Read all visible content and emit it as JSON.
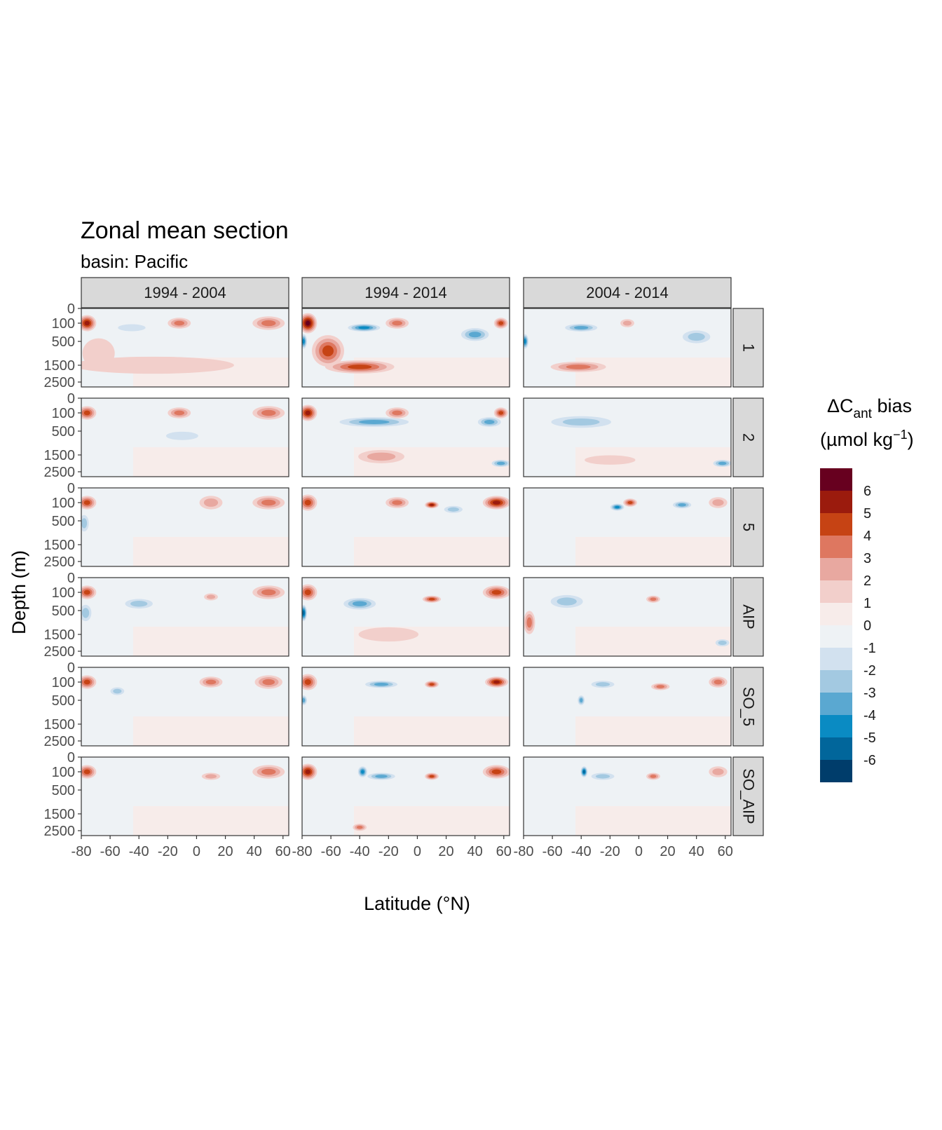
{
  "chart_data": {
    "type": "heatmap",
    "title": "Zonal mean section",
    "subtitle": "basin: Pacific",
    "xlabel": "Latitude (°N)",
    "ylabel": "Depth (m)",
    "x_ticks": [
      "-80",
      "-60",
      "-40",
      "-20",
      "0",
      "20",
      "40",
      "60"
    ],
    "y_ticks": [
      "0",
      "100",
      "500",
      "1500",
      "2500"
    ],
    "columns": [
      "1994 - 2004",
      "1994 - 2014",
      "2004 - 2014"
    ],
    "rows": [
      "1",
      "2",
      "5",
      "AIP",
      "SO_5",
      "SO_AIP"
    ],
    "legend": {
      "title_main": "ΔC",
      "title_sub": "ant",
      "title_rest": " bias",
      "units_main": "(µmol kg",
      "units_sup": "−1",
      "units_end": ")",
      "levels": [
        "6",
        "5",
        "4",
        "3",
        "2",
        "1",
        "0",
        "-1",
        "-2",
        "-3",
        "-4",
        "-5",
        "-6"
      ],
      "colors": [
        "#67001f",
        "#9b1b0d",
        "#c64314",
        "#de7760",
        "#e8a8a0",
        "#f2cfcb",
        "#f7ecea",
        "#eef2f5",
        "#d2e1ef",
        "#a3c9e1",
        "#5aa8d1",
        "#0a8bc3",
        "#01669b",
        "#003d6b"
      ]
    },
    "panels": [
      {
        "row": "1",
        "col": "1994 - 2004",
        "features": [
          {
            "lat": -76,
            "depth": 100,
            "lat_span": 8,
            "depth_span": 120,
            "bias": 5
          },
          {
            "lat": -68,
            "depth": 1000,
            "lat_span": 14,
            "depth_span": 900,
            "bias": 1.5
          },
          {
            "lat": -30,
            "depth": 1500,
            "lat_span": 70,
            "depth_span": 600,
            "bias": 1.2
          },
          {
            "lat": -45,
            "depth": 200,
            "lat_span": 12,
            "depth_span": 100,
            "bias": -1.5
          },
          {
            "lat": -12,
            "depth": 100,
            "lat_span": 10,
            "depth_span": 80,
            "bias": 3
          },
          {
            "lat": 50,
            "depth": 100,
            "lat_span": 14,
            "depth_span": 100,
            "bias": 3
          }
        ]
      },
      {
        "row": "1",
        "col": "1994 - 2014",
        "features": [
          {
            "lat": -76,
            "depth": 100,
            "lat_span": 8,
            "depth_span": 150,
            "bias": 6
          },
          {
            "lat": -62,
            "depth": 900,
            "lat_span": 14,
            "depth_span": 900,
            "bias": 4
          },
          {
            "lat": -40,
            "depth": 1600,
            "lat_span": 30,
            "depth_span": 500,
            "bias": 4.5
          },
          {
            "lat": -79,
            "depth": 500,
            "lat_span": 3,
            "depth_span": 300,
            "bias": -4
          },
          {
            "lat": -37,
            "depth": 200,
            "lat_span": 14,
            "depth_span": 120,
            "bias": -4.5
          },
          {
            "lat": -14,
            "depth": 100,
            "lat_span": 10,
            "depth_span": 80,
            "bias": 3
          },
          {
            "lat": 40,
            "depth": 350,
            "lat_span": 12,
            "depth_span": 200,
            "bias": -3
          },
          {
            "lat": 58,
            "depth": 100,
            "lat_span": 6,
            "depth_span": 80,
            "bias": 4
          }
        ]
      },
      {
        "row": "1",
        "col": "2004 - 2014",
        "features": [
          {
            "lat": -79,
            "depth": 500,
            "lat_span": 3,
            "depth_span": 300,
            "bias": -4
          },
          {
            "lat": -40,
            "depth": 200,
            "lat_span": 14,
            "depth_span": 120,
            "bias": -3.5
          },
          {
            "lat": -42,
            "depth": 1600,
            "lat_span": 24,
            "depth_span": 400,
            "bias": 3.5
          },
          {
            "lat": -8,
            "depth": 100,
            "lat_span": 6,
            "depth_span": 60,
            "bias": 2
          },
          {
            "lat": 40,
            "depth": 400,
            "lat_span": 12,
            "depth_span": 200,
            "bias": -2.5
          }
        ]
      },
      {
        "row": "2",
        "col": "1994 - 2004",
        "features": [
          {
            "lat": -76,
            "depth": 100,
            "lat_span": 8,
            "depth_span": 100,
            "bias": 4.5
          },
          {
            "lat": -12,
            "depth": 100,
            "lat_span": 10,
            "depth_span": 80,
            "bias": 3
          },
          {
            "lat": -10,
            "depth": 700,
            "lat_span": 14,
            "depth_span": 250,
            "bias": -1.8
          },
          {
            "lat": 50,
            "depth": 100,
            "lat_span": 14,
            "depth_span": 100,
            "bias": 3.5
          }
        ]
      },
      {
        "row": "2",
        "col": "1994 - 2014",
        "features": [
          {
            "lat": -76,
            "depth": 100,
            "lat_span": 8,
            "depth_span": 120,
            "bias": 5
          },
          {
            "lat": -30,
            "depth": 300,
            "lat_span": 30,
            "depth_span": 150,
            "bias": -3
          },
          {
            "lat": -25,
            "depth": 1600,
            "lat_span": 20,
            "depth_span": 500,
            "bias": 2.5
          },
          {
            "lat": -14,
            "depth": 100,
            "lat_span": 10,
            "depth_span": 80,
            "bias": 3
          },
          {
            "lat": 50,
            "depth": 300,
            "lat_span": 10,
            "depth_span": 150,
            "bias": -3
          },
          {
            "lat": 58,
            "depth": 100,
            "lat_span": 6,
            "depth_span": 80,
            "bias": 4
          },
          {
            "lat": 58,
            "depth": 2000,
            "lat_span": 8,
            "depth_span": 300,
            "bias": -3
          }
        ]
      },
      {
        "row": "2",
        "col": "2004 - 2014",
        "features": [
          {
            "lat": -40,
            "depth": 300,
            "lat_span": 26,
            "depth_span": 180,
            "bias": -2.5
          },
          {
            "lat": -20,
            "depth": 1800,
            "lat_span": 22,
            "depth_span": 400,
            "bias": 1.8
          },
          {
            "lat": 58,
            "depth": 2000,
            "lat_span": 8,
            "depth_span": 300,
            "bias": -3.5
          }
        ]
      },
      {
        "row": "5",
        "col": "1994 - 2004",
        "features": [
          {
            "lat": -76,
            "depth": 100,
            "lat_span": 8,
            "depth_span": 100,
            "bias": 4
          },
          {
            "lat": -78,
            "depth": 600,
            "lat_span": 4,
            "depth_span": 400,
            "bias": -2
          },
          {
            "lat": 10,
            "depth": 100,
            "lat_span": 10,
            "depth_span": 100,
            "bias": 2.5
          },
          {
            "lat": 50,
            "depth": 100,
            "lat_span": 14,
            "depth_span": 100,
            "bias": 3.5
          }
        ]
      },
      {
        "row": "5",
        "col": "1994 - 2014",
        "features": [
          {
            "lat": -76,
            "depth": 100,
            "lat_span": 8,
            "depth_span": 120,
            "bias": 4.5
          },
          {
            "lat": -14,
            "depth": 100,
            "lat_span": 10,
            "depth_span": 80,
            "bias": 3
          },
          {
            "lat": 10,
            "depth": 150,
            "lat_span": 6,
            "depth_span": 80,
            "bias": 5
          },
          {
            "lat": 55,
            "depth": 100,
            "lat_span": 12,
            "depth_span": 100,
            "bias": 5
          },
          {
            "lat": 25,
            "depth": 250,
            "lat_span": 8,
            "depth_span": 100,
            "bias": -2.5
          }
        ]
      },
      {
        "row": "5",
        "col": "2004 - 2014",
        "features": [
          {
            "lat": -15,
            "depth": 200,
            "lat_span": 6,
            "depth_span": 80,
            "bias": -4.5
          },
          {
            "lat": -6,
            "depth": 100,
            "lat_span": 6,
            "depth_span": 60,
            "bias": 4.5
          },
          {
            "lat": 30,
            "depth": 150,
            "lat_span": 8,
            "depth_span": 80,
            "bias": -3.5
          },
          {
            "lat": 55,
            "depth": 100,
            "lat_span": 8,
            "depth_span": 80,
            "bias": 2.5
          }
        ]
      },
      {
        "row": "AIP",
        "col": "1994 - 2004",
        "features": [
          {
            "lat": -76,
            "depth": 100,
            "lat_span": 8,
            "depth_span": 100,
            "bias": 4
          },
          {
            "lat": -77,
            "depth": 600,
            "lat_span": 5,
            "depth_span": 400,
            "bias": -2.5
          },
          {
            "lat": -40,
            "depth": 350,
            "lat_span": 12,
            "depth_span": 150,
            "bias": -2.5
          },
          {
            "lat": 10,
            "depth": 200,
            "lat_span": 6,
            "depth_span": 80,
            "bias": 2.5
          },
          {
            "lat": 50,
            "depth": 100,
            "lat_span": 14,
            "depth_span": 100,
            "bias": 3.5
          }
        ]
      },
      {
        "row": "AIP",
        "col": "1994 - 2014",
        "features": [
          {
            "lat": -76,
            "depth": 100,
            "lat_span": 8,
            "depth_span": 120,
            "bias": 4.5
          },
          {
            "lat": -79,
            "depth": 600,
            "lat_span": 3,
            "depth_span": 400,
            "bias": -5
          },
          {
            "lat": -40,
            "depth": 350,
            "lat_span": 14,
            "depth_span": 180,
            "bias": -3.5
          },
          {
            "lat": 10,
            "depth": 250,
            "lat_span": 8,
            "depth_span": 100,
            "bias": 4
          },
          {
            "lat": 55,
            "depth": 100,
            "lat_span": 12,
            "depth_span": 100,
            "bias": 4.5
          },
          {
            "lat": -20,
            "depth": 1500,
            "lat_span": 26,
            "depth_span": 500,
            "bias": 1.8
          }
        ]
      },
      {
        "row": "AIP",
        "col": "2004 - 2014",
        "features": [
          {
            "lat": -76,
            "depth": 1000,
            "lat_span": 5,
            "depth_span": 700,
            "bias": 3
          },
          {
            "lat": -50,
            "depth": 300,
            "lat_span": 14,
            "depth_span": 200,
            "bias": -2
          },
          {
            "lat": 10,
            "depth": 250,
            "lat_span": 6,
            "depth_span": 100,
            "bias": 3
          },
          {
            "lat": 58,
            "depth": 2000,
            "lat_span": 6,
            "depth_span": 300,
            "bias": -2.5
          }
        ]
      },
      {
        "row": "SO_5",
        "col": "1994 - 2004",
        "features": [
          {
            "lat": -76,
            "depth": 100,
            "lat_span": 8,
            "depth_span": 100,
            "bias": 4
          },
          {
            "lat": -55,
            "depth": 300,
            "lat_span": 6,
            "depth_span": 120,
            "bias": -2
          },
          {
            "lat": 10,
            "depth": 100,
            "lat_span": 10,
            "depth_span": 80,
            "bias": 3
          },
          {
            "lat": 50,
            "depth": 100,
            "lat_span": 12,
            "depth_span": 100,
            "bias": 3
          }
        ]
      },
      {
        "row": "SO_5",
        "col": "1994 - 2014",
        "features": [
          {
            "lat": -76,
            "depth": 100,
            "lat_span": 8,
            "depth_span": 120,
            "bias": 4.5
          },
          {
            "lat": -79,
            "depth": 500,
            "lat_span": 3,
            "depth_span": 200,
            "bias": -3.5
          },
          {
            "lat": -25,
            "depth": 150,
            "lat_span": 14,
            "depth_span": 80,
            "bias": -3
          },
          {
            "lat": 10,
            "depth": 150,
            "lat_span": 6,
            "depth_span": 80,
            "bias": 4.5
          },
          {
            "lat": 55,
            "depth": 100,
            "lat_span": 10,
            "depth_span": 80,
            "bias": 5
          }
        ]
      },
      {
        "row": "SO_5",
        "col": "2004 - 2014",
        "features": [
          {
            "lat": -40,
            "depth": 500,
            "lat_span": 3,
            "depth_span": 200,
            "bias": -3
          },
          {
            "lat": -25,
            "depth": 150,
            "lat_span": 10,
            "depth_span": 80,
            "bias": -2.5
          },
          {
            "lat": 15,
            "depth": 200,
            "lat_span": 8,
            "depth_span": 100,
            "bias": 3.5
          },
          {
            "lat": 55,
            "depth": 100,
            "lat_span": 8,
            "depth_span": 80,
            "bias": 3
          }
        ]
      },
      {
        "row": "SO_AIP",
        "col": "1994 - 2004",
        "features": [
          {
            "lat": -76,
            "depth": 100,
            "lat_span": 8,
            "depth_span": 100,
            "bias": 4
          },
          {
            "lat": 10,
            "depth": 200,
            "lat_span": 8,
            "depth_span": 80,
            "bias": 2.5
          },
          {
            "lat": 50,
            "depth": 100,
            "lat_span": 14,
            "depth_span": 100,
            "bias": 3.5
          }
        ]
      },
      {
        "row": "SO_AIP",
        "col": "1994 - 2014",
        "features": [
          {
            "lat": -76,
            "depth": 100,
            "lat_span": 8,
            "depth_span": 120,
            "bias": 5
          },
          {
            "lat": -40,
            "depth": 2300,
            "lat_span": 6,
            "depth_span": 300,
            "bias": 3.5
          },
          {
            "lat": -38,
            "depth": 100,
            "lat_span": 4,
            "depth_span": 80,
            "bias": -4
          },
          {
            "lat": -25,
            "depth": 200,
            "lat_span": 12,
            "depth_span": 80,
            "bias": -3
          },
          {
            "lat": 10,
            "depth": 200,
            "lat_span": 6,
            "depth_span": 80,
            "bias": 4.5
          },
          {
            "lat": 55,
            "depth": 100,
            "lat_span": 12,
            "depth_span": 100,
            "bias": 4.5
          }
        ]
      },
      {
        "row": "SO_AIP",
        "col": "2004 - 2014",
        "features": [
          {
            "lat": -38,
            "depth": 100,
            "lat_span": 3,
            "depth_span": 80,
            "bias": -5
          },
          {
            "lat": -25,
            "depth": 200,
            "lat_span": 10,
            "depth_span": 80,
            "bias": -2.5
          },
          {
            "lat": 10,
            "depth": 200,
            "lat_span": 6,
            "depth_span": 80,
            "bias": 3
          },
          {
            "lat": 55,
            "depth": 100,
            "lat_span": 8,
            "depth_span": 80,
            "bias": 2.5
          }
        ]
      }
    ]
  }
}
